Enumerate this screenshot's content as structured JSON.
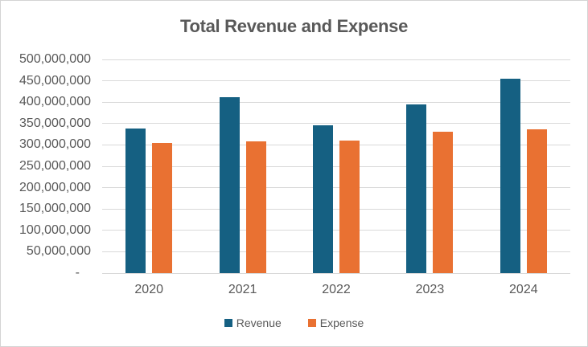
{
  "chart_data": {
    "type": "bar",
    "title": "Total Revenue and Expense",
    "categories": [
      "2020",
      "2021",
      "2022",
      "2023",
      "2024"
    ],
    "series": [
      {
        "name": "Revenue",
        "color": "#156082",
        "values": [
          339000000,
          412000000,
          346000000,
          394000000,
          455000000
        ]
      },
      {
        "name": "Expense",
        "color": "#E97132",
        "values": [
          304000000,
          308000000,
          311000000,
          330000000,
          336000000
        ]
      }
    ],
    "xlabel": "",
    "ylabel": "",
    "ylim": [
      0,
      500000000
    ],
    "ytick_step": 50000000,
    "ytick_labels_top_to_bottom": [
      "500,000,000",
      "450,000,000",
      "400,000,000",
      "350,000,000",
      "300,000,000",
      "250,000,000",
      "200,000,000",
      "150,000,000",
      "100,000,000",
      "50,000,000",
      "-"
    ],
    "grid": true,
    "legend_position": "bottom",
    "colors": {
      "revenue": "#156082",
      "expense": "#E97132",
      "gridline": "#d9d9d9",
      "axis_text": "#595959",
      "title_text": "#595959",
      "chart_border": "#d4d4d4",
      "background": "#ffffff"
    }
  }
}
